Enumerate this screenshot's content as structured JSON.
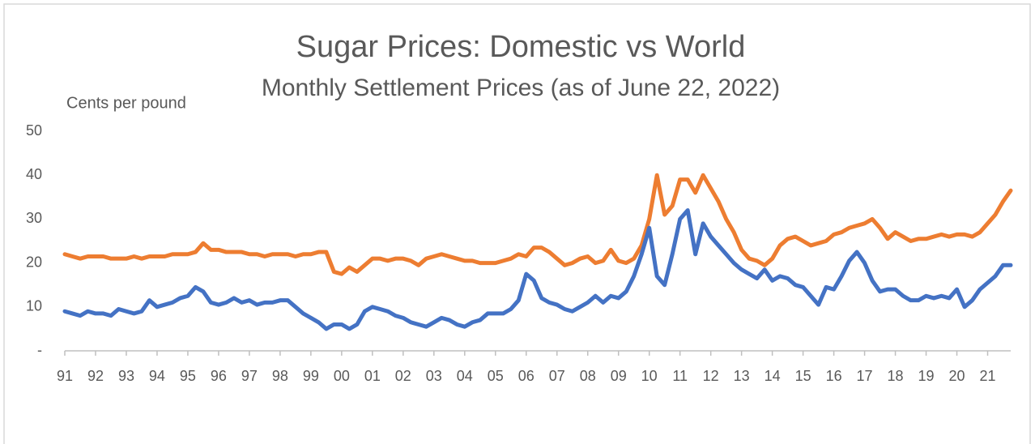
{
  "chart_data": {
    "type": "line",
    "title": "Sugar Prices: Domestic vs World",
    "subtitle": "Monthly Settlement Prices (as of June 22, 2022)",
    "y_label": "Cents per pound",
    "x": [
      1991,
      1991.25,
      1991.5,
      1991.75,
      1992,
      1992.25,
      1992.5,
      1992.75,
      1993,
      1993.25,
      1993.5,
      1993.75,
      1994,
      1994.25,
      1994.5,
      1994.75,
      1995,
      1995.25,
      1995.5,
      1995.75,
      1996,
      1996.25,
      1996.5,
      1996.75,
      1997,
      1997.25,
      1997.5,
      1997.75,
      1998,
      1998.25,
      1998.5,
      1998.75,
      1999,
      1999.25,
      1999.5,
      1999.75,
      2000,
      2000.25,
      2000.5,
      2000.75,
      2001,
      2001.25,
      2001.5,
      2001.75,
      2002,
      2002.25,
      2002.5,
      2002.75,
      2003,
      2003.25,
      2003.5,
      2003.75,
      2004,
      2004.25,
      2004.5,
      2004.75,
      2005,
      2005.25,
      2005.5,
      2005.75,
      2006,
      2006.25,
      2006.5,
      2006.75,
      2007,
      2007.25,
      2007.5,
      2007.75,
      2008,
      2008.25,
      2008.5,
      2008.75,
      2009,
      2009.25,
      2009.5,
      2009.75,
      2010,
      2010.25,
      2010.5,
      2010.75,
      2011,
      2011.25,
      2011.5,
      2011.75,
      2012,
      2012.25,
      2012.5,
      2012.75,
      2013,
      2013.25,
      2013.5,
      2013.75,
      2014,
      2014.25,
      2014.5,
      2014.75,
      2015,
      2015.25,
      2015.5,
      2015.75,
      2016,
      2016.25,
      2016.5,
      2016.75,
      2017,
      2017.25,
      2017.5,
      2017.75,
      2018,
      2018.25,
      2018.5,
      2018.75,
      2019,
      2019.25,
      2019.5,
      2019.75,
      2020,
      2020.25,
      2020.5,
      2020.75,
      2021,
      2021.25,
      2021.5,
      2021.75
    ],
    "series": [
      {
        "color": "#ED7D31",
        "values": [
          22,
          21.5,
          21,
          21.5,
          21.5,
          21.5,
          21,
          21,
          21,
          21.5,
          21,
          21.5,
          21.5,
          21.5,
          22,
          22,
          22,
          22.5,
          24.5,
          23,
          23,
          22.5,
          22.5,
          22.5,
          22,
          22,
          21.5,
          22,
          22,
          22,
          21.5,
          22,
          22,
          22.5,
          22.5,
          18,
          17.5,
          19,
          18,
          19.5,
          21,
          21,
          20.5,
          21,
          21,
          20.5,
          19.5,
          21,
          21.5,
          22,
          21.5,
          21,
          20.5,
          20.5,
          20,
          20,
          20,
          20.5,
          21,
          22,
          21.5,
          23.5,
          23.5,
          22.5,
          21,
          19.5,
          20,
          21,
          21.5,
          20,
          20.5,
          23,
          20.5,
          20,
          21,
          24,
          30,
          40,
          31,
          33,
          39,
          39,
          36,
          40,
          37,
          34,
          30,
          27,
          23,
          21,
          20.5,
          19.5,
          21,
          24,
          25.5,
          26,
          25,
          24,
          24.5,
          25,
          26.5,
          27,
          28,
          28.5,
          29,
          30,
          28,
          25.5,
          27,
          26,
          25,
          25.5,
          25.5,
          26,
          26.5,
          26,
          26.5,
          26.5,
          26,
          27,
          29,
          31,
          34,
          36.5
        ]
      },
      {
        "color": "#4472C4",
        "values": [
          9,
          8.5,
          8,
          9,
          8.5,
          8.5,
          8,
          9.5,
          9,
          8.5,
          9,
          11.5,
          10,
          10.5,
          11,
          12,
          12.5,
          14.5,
          13.5,
          11,
          10.5,
          11,
          12,
          11,
          11.5,
          10.5,
          11,
          11,
          11.5,
          11.5,
          10,
          8.5,
          7.5,
          6.5,
          5,
          6,
          6,
          5,
          6,
          9,
          10,
          9.5,
          9,
          8,
          7.5,
          6.5,
          6,
          5.5,
          6.5,
          7.5,
          7,
          6,
          5.5,
          6.5,
          7,
          8.5,
          8.5,
          8.5,
          9.5,
          11.5,
          17.5,
          16,
          12,
          11,
          10.5,
          9.5,
          9,
          10,
          11,
          12.5,
          11,
          12.5,
          12,
          13.5,
          17,
          22,
          28,
          17,
          15,
          22,
          30,
          32,
          22,
          29,
          26,
          24,
          22,
          20,
          18.5,
          17.5,
          16.5,
          18.5,
          16,
          17,
          16.5,
          15,
          14.5,
          12.5,
          10.5,
          14.5,
          14,
          17,
          20.5,
          22.5,
          20,
          16,
          13.5,
          14,
          14,
          12.5,
          11.5,
          11.5,
          12.5,
          12,
          12.5,
          12,
          14,
          10,
          11.5,
          14,
          15.5,
          17,
          19.5,
          19.5
        ]
      }
    ],
    "xlim": [
      1991,
      2021.75
    ],
    "xticks": [
      {
        "value": 1991,
        "label": "91"
      },
      {
        "value": 1992,
        "label": "92"
      },
      {
        "value": 1993,
        "label": "93"
      },
      {
        "value": 1994,
        "label": "94"
      },
      {
        "value": 1995,
        "label": "95"
      },
      {
        "value": 1996,
        "label": "96"
      },
      {
        "value": 1997,
        "label": "97"
      },
      {
        "value": 1998,
        "label": "98"
      },
      {
        "value": 1999,
        "label": "99"
      },
      {
        "value": 2000,
        "label": "00"
      },
      {
        "value": 2001,
        "label": "01"
      },
      {
        "value": 2002,
        "label": "02"
      },
      {
        "value": 2003,
        "label": "03"
      },
      {
        "value": 2004,
        "label": "04"
      },
      {
        "value": 2005,
        "label": "05"
      },
      {
        "value": 2006,
        "label": "06"
      },
      {
        "value": 2007,
        "label": "07"
      },
      {
        "value": 2008,
        "label": "08"
      },
      {
        "value": 2009,
        "label": "09"
      },
      {
        "value": 2010,
        "label": "10"
      },
      {
        "value": 2011,
        "label": "11"
      },
      {
        "value": 2012,
        "label": "12"
      },
      {
        "value": 2013,
        "label": "13"
      },
      {
        "value": 2014,
        "label": "14"
      },
      {
        "value": 2015,
        "label": "15"
      },
      {
        "value": 2016,
        "label": "16"
      },
      {
        "value": 2017,
        "label": "17"
      },
      {
        "value": 2018,
        "label": "18"
      },
      {
        "value": 2019,
        "label": "19"
      },
      {
        "value": 2020,
        "label": "20"
      },
      {
        "value": 2021,
        "label": "21"
      }
    ],
    "ylim": [
      0,
      50
    ],
    "yticks": [
      {
        "value": 0,
        "label": "-"
      },
      10,
      20,
      30,
      40,
      50
    ],
    "grid": false
  }
}
